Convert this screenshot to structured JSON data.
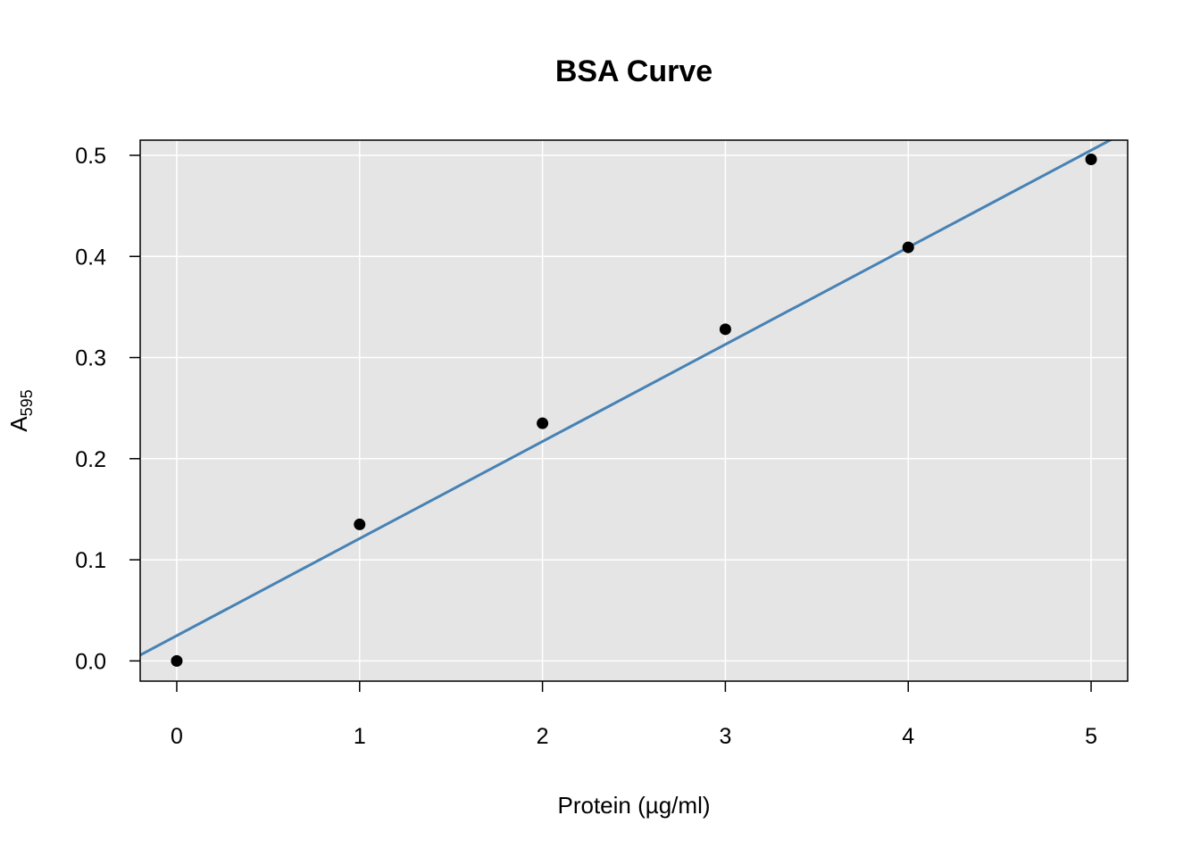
{
  "chart_data": {
    "type": "scatter",
    "title": "BSA Curve",
    "xlabel": "Protein (µg/ml)",
    "ylabel": {
      "main": "A",
      "subscript": "595"
    },
    "xlim": [
      -0.2,
      5.2
    ],
    "ylim": [
      -0.02,
      0.515
    ],
    "x_ticks": [
      0,
      1,
      2,
      3,
      4,
      5
    ],
    "y_ticks": [
      0.0,
      0.1,
      0.2,
      0.3,
      0.4,
      0.5
    ],
    "x_tick_labels": [
      "0",
      "1",
      "2",
      "3",
      "4",
      "5"
    ],
    "y_tick_labels": [
      "0.0",
      "0.1",
      "0.2",
      "0.3",
      "0.4",
      "0.5"
    ],
    "grid": true,
    "series": [
      {
        "x": [
          0,
          1,
          2,
          3,
          4,
          5
        ],
        "y": [
          0.0,
          0.135,
          0.235,
          0.328,
          0.409,
          0.496
        ]
      }
    ],
    "fit_line": {
      "intercept": 0.025,
      "slope": 0.096
    },
    "colors": {
      "panel_background": "#e5e5e5",
      "grid": "#ffffff",
      "points": "#000000",
      "fit_line": "#4682b4"
    }
  }
}
